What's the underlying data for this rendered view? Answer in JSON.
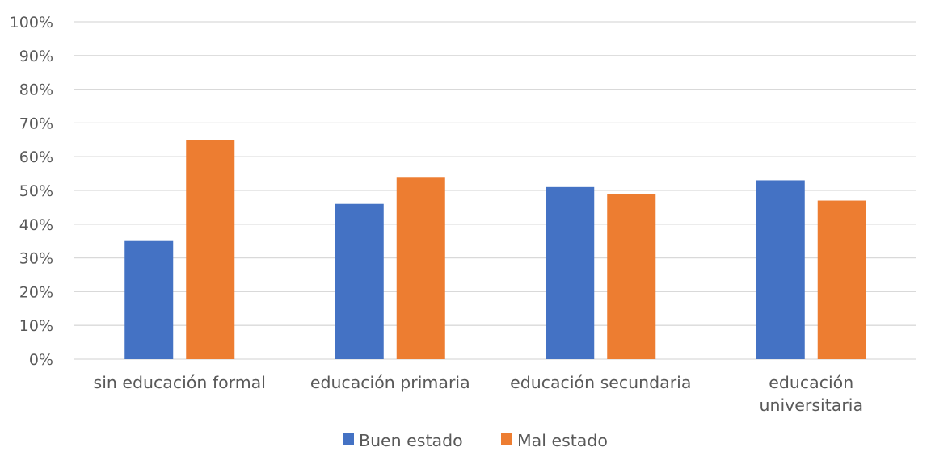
{
  "chart_data": {
    "type": "bar",
    "title": "",
    "xlabel": "",
    "ylabel": "",
    "categories": [
      [
        "sin educación formal"
      ],
      [
        "educación primaria"
      ],
      [
        "educación secundaria"
      ],
      [
        "educación",
        "universitaria"
      ]
    ],
    "series": [
      {
        "name": "Buen estado",
        "color": "#4472C4",
        "values": [
          35,
          46,
          51,
          53
        ]
      },
      {
        "name": "Mal estado",
        "color": "#ED7D31",
        "values": [
          65,
          54,
          49,
          47
        ]
      }
    ],
    "ylim": [
      0,
      100
    ],
    "yticks": [
      "0%",
      "10%",
      "20%",
      "30%",
      "40%",
      "50%",
      "60%",
      "70%",
      "80%",
      "90%",
      "100%"
    ],
    "grid": true,
    "legend_position": "bottom",
    "gridline_color": "#D9D9D9",
    "text_color": "#595959"
  }
}
